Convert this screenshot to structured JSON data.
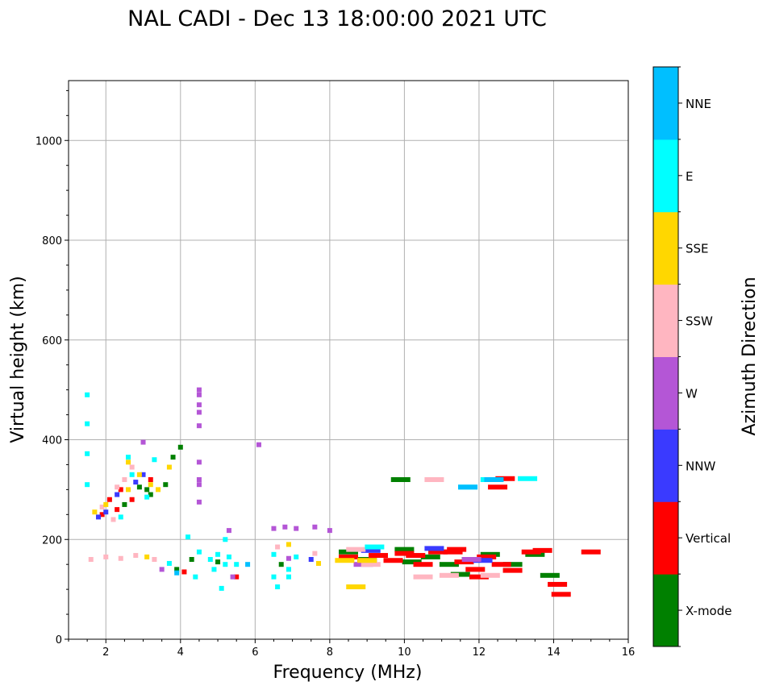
{
  "chart_data": {
    "type": "scatter",
    "title": "NAL CADI - Dec 13 18:00:00 2021 UTC",
    "xlabel": "Frequency (MHz)",
    "ylabel": "Virtual height (km)",
    "xlim": [
      1,
      16
    ],
    "ylim": [
      0,
      1120
    ],
    "xticks": [
      2,
      4,
      6,
      8,
      10,
      12,
      14,
      16
    ],
    "yticks": [
      0,
      200,
      400,
      600,
      800,
      1000
    ],
    "grid": true,
    "colorbar": {
      "label": "Azimuth Direction",
      "categories": [
        {
          "name": "X-mode",
          "color": "#008000"
        },
        {
          "name": "Vertical",
          "color": "#ff0000"
        },
        {
          "name": "NNW",
          "color": "#3a3aff"
        },
        {
          "name": "W",
          "color": "#b456d6"
        },
        {
          "name": "SSW",
          "color": "#ffb6c1"
        },
        {
          "name": "SSE",
          "color": "#ffd700"
        },
        {
          "name": "E",
          "color": "#00ffff"
        },
        {
          "name": "NNE",
          "color": "#00bfff"
        }
      ]
    },
    "series": [
      {
        "name": "X-mode",
        "points": [
          [
            4.0,
            385
          ],
          [
            3.8,
            365
          ],
          [
            3.6,
            310
          ],
          [
            3.2,
            290
          ],
          [
            3.1,
            300
          ],
          [
            2.5,
            270
          ],
          [
            2.9,
            305
          ],
          [
            3.9,
            140
          ],
          [
            4.3,
            160
          ],
          [
            10.2,
            155
          ],
          [
            10.7,
            165
          ],
          [
            11.2,
            150
          ],
          [
            11.8,
            160
          ],
          [
            12.3,
            170
          ],
          [
            13.5,
            170
          ],
          [
            12.9,
            150
          ],
          [
            11.5,
            130
          ],
          [
            13.9,
            128
          ],
          [
            9.9,
            320
          ],
          [
            10.0,
            180
          ],
          [
            9.0,
            160
          ],
          [
            8.5,
            175
          ],
          [
            5.0,
            155
          ],
          [
            6.7,
            150
          ]
        ]
      },
      {
        "name": "Vertical",
        "points": [
          [
            2.1,
            280
          ],
          [
            2.4,
            300
          ],
          [
            2.3,
            260
          ],
          [
            1.9,
            250
          ],
          [
            3.2,
            320
          ],
          [
            2.7,
            280
          ],
          [
            4.1,
            135
          ],
          [
            5.5,
            125
          ],
          [
            8.5,
            165
          ],
          [
            9.0,
            158
          ],
          [
            9.3,
            168
          ],
          [
            9.7,
            158
          ],
          [
            10.0,
            172
          ],
          [
            10.3,
            168
          ],
          [
            10.5,
            150
          ],
          [
            10.9,
            175
          ],
          [
            11.3,
            175
          ],
          [
            11.6,
            155
          ],
          [
            11.9,
            140
          ],
          [
            12.2,
            165
          ],
          [
            12.6,
            150
          ],
          [
            12.9,
            138
          ],
          [
            13.4,
            175
          ],
          [
            13.7,
            178
          ],
          [
            14.1,
            110
          ],
          [
            14.2,
            90
          ],
          [
            15.0,
            175
          ],
          [
            12.5,
            305
          ],
          [
            12.7,
            322
          ],
          [
            11.4,
            180
          ],
          [
            12.0,
            125
          ]
        ]
      },
      {
        "name": "NNW",
        "points": [
          [
            2.0,
            255
          ],
          [
            2.3,
            290
          ],
          [
            2.8,
            315
          ],
          [
            3.0,
            330
          ],
          [
            1.8,
            245
          ],
          [
            7.5,
            160
          ],
          [
            12.1,
            158
          ],
          [
            10.8,
            182
          ],
          [
            9.1,
            178
          ]
        ]
      },
      {
        "name": "W",
        "points": [
          [
            4.5,
            500
          ],
          [
            4.5,
            490
          ],
          [
            4.5,
            470
          ],
          [
            4.5,
            455
          ],
          [
            4.5,
            428
          ],
          [
            4.5,
            355
          ],
          [
            4.5,
            320
          ],
          [
            4.5,
            310
          ],
          [
            4.5,
            275
          ],
          [
            6.1,
            390
          ],
          [
            3.0,
            395
          ],
          [
            6.5,
            222
          ],
          [
            6.8,
            225
          ],
          [
            7.1,
            222
          ],
          [
            7.6,
            225
          ],
          [
            8.0,
            218
          ],
          [
            5.3,
            218
          ],
          [
            5.4,
            125
          ],
          [
            6.9,
            162
          ],
          [
            8.9,
            150
          ],
          [
            11.8,
            160
          ],
          [
            3.5,
            140
          ]
        ]
      },
      {
        "name": "SSW",
        "points": [
          [
            1.6,
            160
          ],
          [
            2.0,
            165
          ],
          [
            2.4,
            162
          ],
          [
            2.8,
            168
          ],
          [
            3.3,
            160
          ],
          [
            2.3,
            305
          ],
          [
            2.5,
            320
          ],
          [
            2.7,
            345
          ],
          [
            1.9,
            265
          ],
          [
            2.2,
            240
          ],
          [
            8.7,
            180
          ],
          [
            9.1,
            150
          ],
          [
            10.8,
            320
          ],
          [
            11.2,
            128
          ],
          [
            12.3,
            128
          ],
          [
            7.6,
            172
          ],
          [
            6.6,
            185
          ],
          [
            10.5,
            125
          ]
        ]
      },
      {
        "name": "SSE",
        "points": [
          [
            2.6,
            355
          ],
          [
            3.7,
            345
          ],
          [
            3.2,
            310
          ],
          [
            2.9,
            330
          ],
          [
            3.4,
            300
          ],
          [
            2.0,
            270
          ],
          [
            1.7,
            255
          ],
          [
            2.6,
            300
          ],
          [
            7.7,
            152
          ],
          [
            8.4,
            158
          ],
          [
            9.0,
            158
          ],
          [
            6.9,
            190
          ],
          [
            8.7,
            105
          ],
          [
            3.1,
            165
          ]
        ]
      },
      {
        "name": "E",
        "points": [
          [
            1.5,
            490
          ],
          [
            1.5,
            432
          ],
          [
            1.5,
            372
          ],
          [
            1.5,
            310
          ],
          [
            2.6,
            365
          ],
          [
            3.3,
            360
          ],
          [
            2.7,
            330
          ],
          [
            3.1,
            285
          ],
          [
            2.4,
            245
          ],
          [
            4.2,
            205
          ],
          [
            4.8,
            160
          ],
          [
            5.0,
            170
          ],
          [
            5.2,
            150
          ],
          [
            4.9,
            140
          ],
          [
            5.3,
            165
          ],
          [
            5.5,
            150
          ],
          [
            5.1,
            102
          ],
          [
            4.4,
            125
          ],
          [
            3.7,
            152
          ],
          [
            6.5,
            170
          ],
          [
            6.9,
            140
          ],
          [
            7.1,
            165
          ],
          [
            6.6,
            105
          ],
          [
            6.5,
            125
          ],
          [
            6.9,
            125
          ],
          [
            13.3,
            322
          ],
          [
            12.3,
            320
          ],
          [
            11.7,
            305
          ],
          [
            9.2,
            185
          ],
          [
            4.5,
            175
          ],
          [
            5.2,
            200
          ]
        ]
      },
      {
        "name": "NNE",
        "points": [
          [
            12.4,
            320
          ],
          [
            11.7,
            305
          ],
          [
            3.9,
            133
          ],
          [
            5.8,
            150
          ]
        ]
      }
    ]
  }
}
